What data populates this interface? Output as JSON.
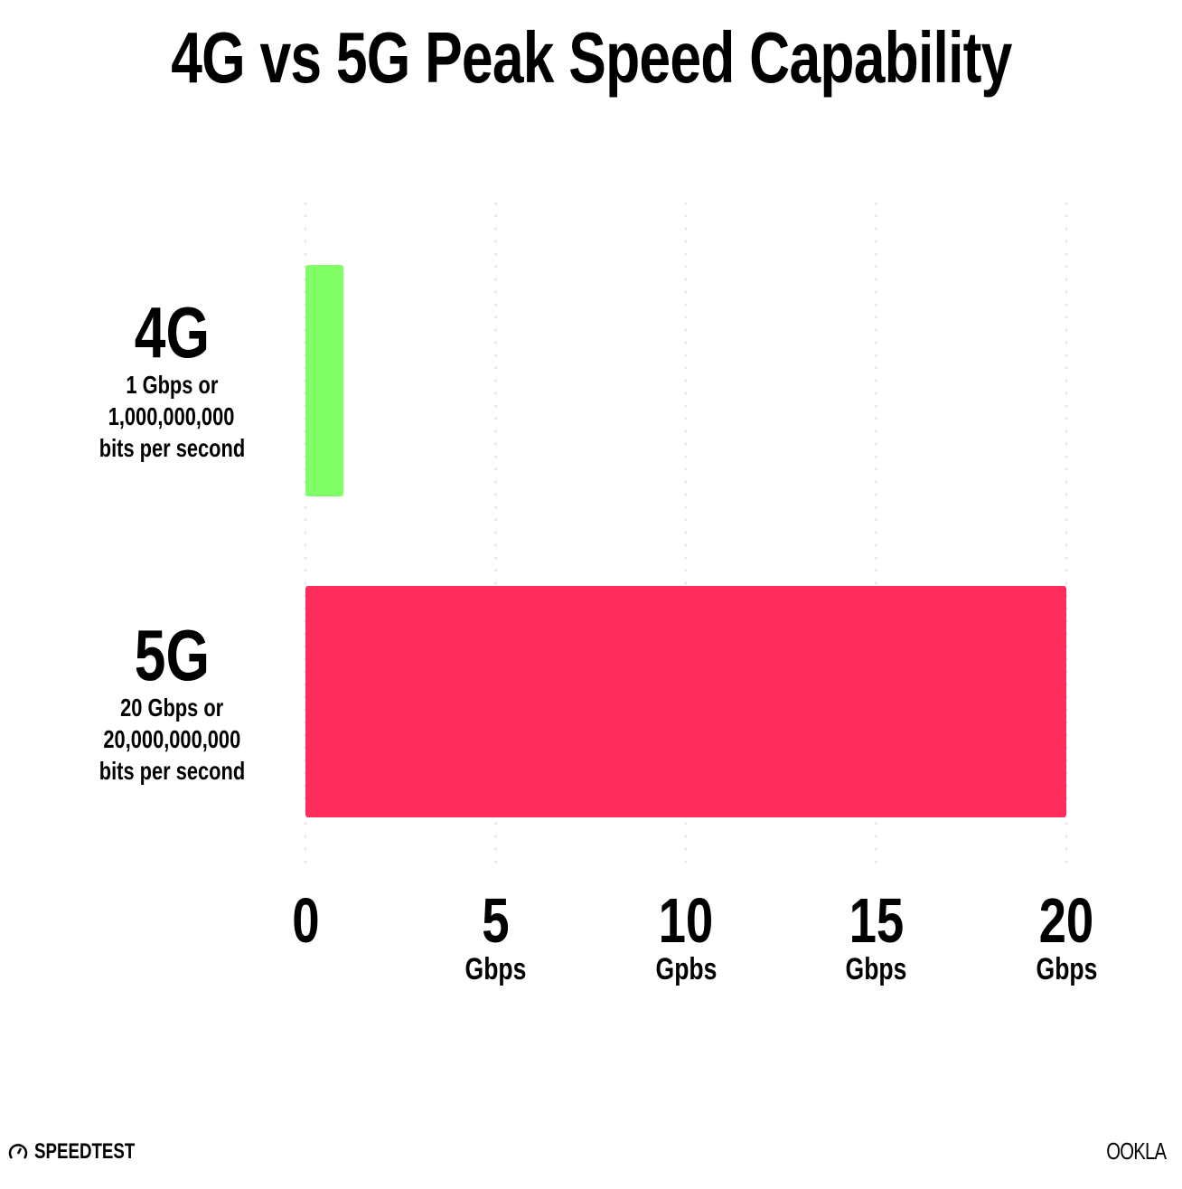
{
  "chart_data": {
    "type": "bar",
    "orientation": "horizontal",
    "title": "4G vs 5G Peak Speed Capability",
    "categories": [
      "4G",
      "5G"
    ],
    "category_descriptions": [
      [
        "1 Gbps or",
        "1,000,000,000",
        "bits per second"
      ],
      [
        "20 Gbps or",
        "20,000,000,000",
        "bits per second"
      ]
    ],
    "values": [
      1,
      20
    ],
    "colors": [
      "#80ff66",
      "#ff2d5b"
    ],
    "xlim": [
      0,
      20
    ],
    "xticks": [
      {
        "value": 0,
        "label": "0",
        "unit": ""
      },
      {
        "value": 5,
        "label": "5",
        "unit": "Gbps"
      },
      {
        "value": 10,
        "label": "10",
        "unit": "Gpbs"
      },
      {
        "value": 15,
        "label": "15",
        "unit": "Gbps"
      },
      {
        "value": 20,
        "label": "20",
        "unit": "Gbps"
      }
    ],
    "grid": "vertical dotted",
    "legend": "none"
  },
  "footer": {
    "left_logo": "SPEEDTEST",
    "right_logo": "OOKLA"
  }
}
